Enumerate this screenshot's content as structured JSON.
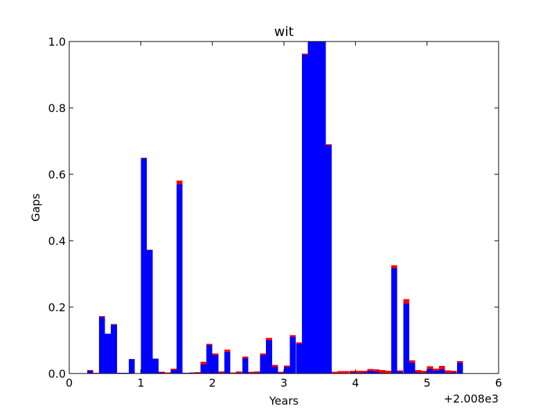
{
  "chart_data": {
    "type": "bar",
    "stacked": true,
    "title": "wit",
    "xlabel": "Years",
    "ylabel": "Gaps",
    "x_offset_label": "+2.008e3",
    "xlim": [
      0,
      6
    ],
    "ylim": [
      0,
      1.0
    ],
    "bar_width": 0.0833,
    "x_ticks": [
      0,
      1,
      2,
      3,
      4,
      5,
      6
    ],
    "x_tick_labels": [
      "0",
      "1",
      "2",
      "3",
      "4",
      "5",
      "6"
    ],
    "y_ticks": [
      0.0,
      0.2,
      0.4,
      0.6,
      0.8,
      1.0
    ],
    "y_tick_labels": [
      "0.0",
      "0.2",
      "0.4",
      "0.6",
      "0.8",
      "1.0"
    ],
    "grid": false,
    "x": [
      0.25,
      0.333,
      0.417,
      0.5,
      0.583,
      0.667,
      0.75,
      0.833,
      0.917,
      1.0,
      1.083,
      1.167,
      1.25,
      1.333,
      1.417,
      1.5,
      1.583,
      1.667,
      1.75,
      1.833,
      1.917,
      2.0,
      2.083,
      2.167,
      2.25,
      2.333,
      2.417,
      2.5,
      2.583,
      2.667,
      2.75,
      2.833,
      2.917,
      3.0,
      3.083,
      3.167,
      3.25,
      3.333,
      3.417,
      3.5,
      3.583,
      3.667,
      3.75,
      3.833,
      3.917,
      4.0,
      4.083,
      4.167,
      4.25,
      4.333,
      4.417,
      4.5,
      4.583,
      4.667,
      4.75,
      4.833,
      4.917,
      5.0,
      5.083,
      5.167,
      5.25,
      5.333,
      5.417
    ],
    "series": [
      {
        "color": "#0000ff",
        "values": [
          0.008,
          0.0,
          0.17,
          0.12,
          0.147,
          0.002,
          0.002,
          0.043,
          0.0,
          0.648,
          0.372,
          0.045,
          0.003,
          0.001,
          0.01,
          0.57,
          0.002,
          0.002,
          0.0,
          0.027,
          0.085,
          0.055,
          0.002,
          0.065,
          0.0,
          0.002,
          0.046,
          0.002,
          0.002,
          0.055,
          0.1,
          0.02,
          0.002,
          0.02,
          0.11,
          0.09,
          0.96,
          1.0,
          1.0,
          1.0,
          0.688,
          0.001,
          0.001,
          0.001,
          0.003,
          0.002,
          0.003,
          0.008,
          0.006,
          0.002,
          0.001,
          0.318,
          0.005,
          0.21,
          0.032,
          0.003,
          0.002,
          0.014,
          0.008,
          0.013,
          0.002,
          0.003,
          0.032
        ]
      },
      {
        "color": "#ff0000",
        "values": [
          0.002,
          0.002,
          0.003,
          0.0,
          0.002,
          0.0,
          0.0,
          0.001,
          0.0,
          0.002,
          0.001,
          0.0,
          0.002,
          0.002,
          0.005,
          0.011,
          0.0,
          0.001,
          0.004,
          0.008,
          0.005,
          0.005,
          0.004,
          0.007,
          0.003,
          0.004,
          0.005,
          0.003,
          0.004,
          0.005,
          0.007,
          0.006,
          0.003,
          0.004,
          0.006,
          0.004,
          0.004,
          0.0,
          0.0,
          0.0,
          0.003,
          0.004,
          0.006,
          0.006,
          0.005,
          0.006,
          0.005,
          0.006,
          0.006,
          0.008,
          0.007,
          0.008,
          0.004,
          0.014,
          0.008,
          0.007,
          0.006,
          0.008,
          0.007,
          0.01,
          0.007,
          0.005,
          0.006
        ]
      }
    ]
  }
}
